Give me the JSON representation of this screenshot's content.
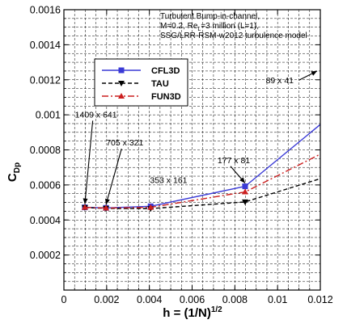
{
  "chart_data": {
    "type": "line",
    "title_lines": [
      "Turbulent Bump-in-channel,",
      "M=0.2, Re",
      "=3 million (L=1),",
      "SSG/LRR-RSM-w2012 turbulence model"
    ],
    "title_sub": "L",
    "xlabel_main": "h = (1/N)",
    "xlabel_sup": "1/2",
    "ylabel_main": "C",
    "ylabel_sub": "Dp",
    "xlim": [
      0,
      0.012
    ],
    "ylim": [
      0,
      0.0016
    ],
    "x_ticks": [
      0,
      0.002,
      0.004,
      0.006,
      0.008,
      0.01,
      0.012
    ],
    "x_tick_labels": [
      "0",
      "0.002",
      "0.004",
      "0.006",
      "0.008",
      "0.01",
      "0.012"
    ],
    "y_ticks": [
      0.0002,
      0.0004,
      0.0006,
      0.0008,
      0.001,
      0.0012,
      0.0014,
      0.0016
    ],
    "y_tick_labels": [
      "0.0002",
      "0.0004",
      "0.0006",
      "0.0008",
      "0.001",
      "0.0012",
      "0.0014",
      "0.0016"
    ],
    "grid": true,
    "legend_position": "upper-left",
    "series": [
      {
        "name": "CFL3D",
        "color": "#3a3ad6",
        "dash": "solid",
        "marker": "square",
        "x": [
          0.00098,
          0.00197,
          0.00406,
          0.00848,
          0.0124
        ],
        "y": [
          0.000472,
          0.000469,
          0.000478,
          0.000592,
          0.000985
        ]
      },
      {
        "name": "TAU",
        "color": "#000000",
        "dash": "dashed",
        "marker": "triangle-down",
        "x": [
          0.00098,
          0.00197,
          0.00406,
          0.00848,
          0.0124
        ],
        "y": [
          0.000471,
          0.000466,
          0.000465,
          0.000503,
          0.000651
        ]
      },
      {
        "name": "FUN3D",
        "color": "#cc1f1f",
        "dash": "dashdot",
        "marker": "triangle-up",
        "x": [
          0.00098,
          0.00197,
          0.00406,
          0.00848,
          0.0124
        ],
        "y": [
          0.000472,
          0.000468,
          0.000472,
          0.00056,
          0.0008
        ]
      }
    ],
    "annotations": [
      {
        "text": "1409 x 641",
        "x": 0.0015,
        "y": 0.000985,
        "arrow_to": [
          0.00098,
          0.000472
        ]
      },
      {
        "text": "705 x 321",
        "x": 0.00285,
        "y": 0.000825,
        "arrow_to": [
          0.00197,
          0.000469
        ]
      },
      {
        "text": "353 x 161",
        "x": 0.0049,
        "y": 0.000612,
        "arrow_to": null
      },
      {
        "text": "177 x 81",
        "x": 0.00795,
        "y": 0.000725,
        "arrow_to": [
          0.00848,
          0.000592
        ]
      },
      {
        "text": "89 x 41",
        "x": 0.0101,
        "y": 0.00118,
        "arrow_to": [
          0.01185,
          0.00125
        ]
      }
    ]
  }
}
